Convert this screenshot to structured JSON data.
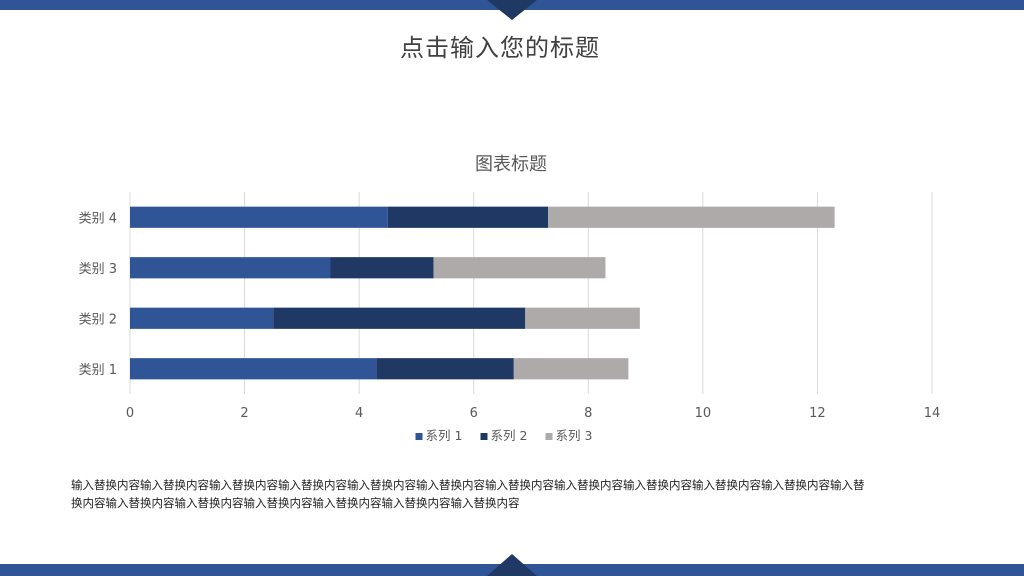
{
  "slide": {
    "title": "点击输入您的标题",
    "body_text": "输入替换内容输入替换内容输入替换内容输入替换内容输入替换内容输入替换内容输入替换内容输入替换内容输入替换内容输入替换内容输入替换内容输入替换内容输入替换内容输入替换内容输入替换内容输入替换内容输入替换内容输入替换内容"
  },
  "theme": {
    "accent": "#2F5597",
    "accent_dark": "#1F3864"
  },
  "chart_data": {
    "type": "bar",
    "orientation": "horizontal",
    "stacked": true,
    "title": "图表标题",
    "categories": [
      "类别 1",
      "类别 2",
      "类别 3",
      "类别 4"
    ],
    "series": [
      {
        "name": "系列 1",
        "values": [
          4.3,
          2.5,
          3.5,
          4.5
        ],
        "color": "#2F5597"
      },
      {
        "name": "系列 2",
        "values": [
          2.4,
          4.4,
          1.8,
          2.8
        ],
        "color": "#1F3864"
      },
      {
        "name": "系列 3",
        "values": [
          2.0,
          2.0,
          3.0,
          5.0
        ],
        "color": "#AEAAAA"
      }
    ],
    "xlim": [
      0,
      14
    ],
    "x_ticks": [
      "0",
      "2",
      "4",
      "6",
      "8",
      "10",
      "12",
      "14"
    ],
    "grid": true,
    "legend": "bottom"
  }
}
